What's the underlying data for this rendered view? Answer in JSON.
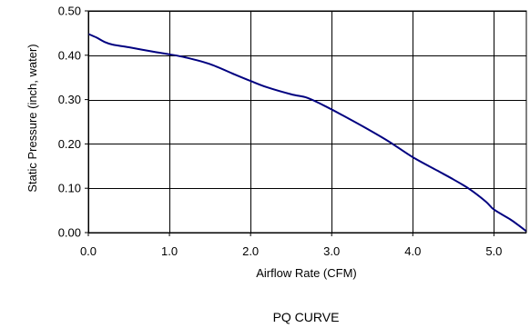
{
  "chart_data": {
    "type": "line",
    "title": "PQ CURVE",
    "xlabel": "Airflow Rate (CFM)",
    "ylabel": "Static Pressure (inch, water)",
    "xlim": [
      0,
      5.4
    ],
    "ylim": [
      0,
      0.5
    ],
    "grid": true,
    "x_ticks": [
      "0.0",
      "1.0",
      "2.0",
      "3.0",
      "4.0",
      "5.0"
    ],
    "x_tick_values": [
      0,
      1,
      2,
      3,
      4,
      5
    ],
    "y_ticks": [
      "0.00",
      "0.10",
      "0.20",
      "0.30",
      "0.40",
      "0.50"
    ],
    "y_tick_values": [
      0,
      0.1,
      0.2,
      0.3,
      0.4,
      0.5
    ],
    "series": [
      {
        "color": "#000080",
        "x": [
          0.0,
          0.1,
          0.2,
          0.3,
          0.5,
          0.8,
          1.0,
          1.2,
          1.5,
          1.8,
          2.0,
          2.2,
          2.5,
          2.7,
          2.9,
          3.1,
          3.4,
          3.7,
          4.0,
          4.3,
          4.5,
          4.7,
          4.9,
          5.0,
          5.2,
          5.3,
          5.4
        ],
        "y": [
          0.448,
          0.44,
          0.43,
          0.424,
          0.418,
          0.408,
          0.402,
          0.395,
          0.38,
          0.357,
          0.342,
          0.328,
          0.312,
          0.304,
          0.287,
          0.268,
          0.238,
          0.206,
          0.17,
          0.14,
          0.12,
          0.098,
          0.07,
          0.052,
          0.03,
          0.017,
          0.003
        ]
      }
    ]
  }
}
